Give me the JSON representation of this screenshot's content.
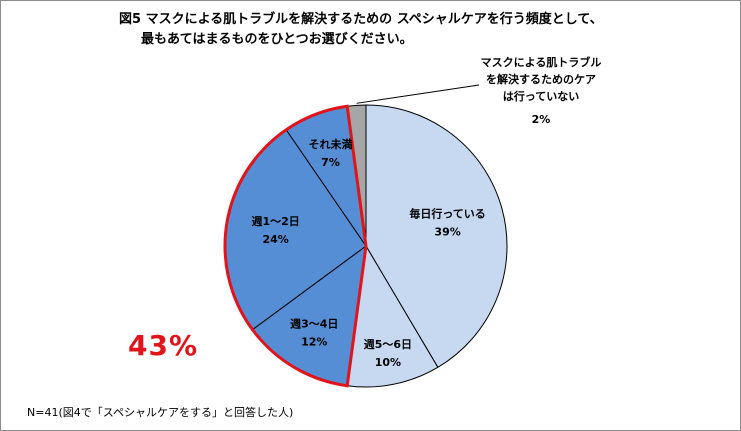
{
  "chart_data": {
    "type": "pie",
    "title_line1": "図5 マスクによる肌トラブルを解決するための スペシャルケアを行う頻度として、",
    "title_line2": "最もあてはまるものをひとつお選びください。",
    "slices": [
      {
        "label": "毎日行っている",
        "value": 39,
        "display": "39%",
        "color": "#c6d9f1",
        "highlight": false
      },
      {
        "label": "週5～6日",
        "value": 10,
        "display": "10%",
        "color": "#c6d9f1",
        "highlight": false
      },
      {
        "label": "週3～4日",
        "value": 12,
        "display": "12%",
        "color": "#558ed5",
        "highlight": true
      },
      {
        "label": "週1～2日",
        "value": 24,
        "display": "24%",
        "color": "#558ed5",
        "highlight": true
      },
      {
        "label": "それ未満",
        "value": 7,
        "display": "7%",
        "color": "#558ed5",
        "highlight": true
      },
      {
        "label_lines": [
          "マスクによる肌トラブル",
          "を解決するためのケア",
          "は行っていない"
        ],
        "value": 2,
        "display": "2%",
        "color": "#a6a6a6",
        "highlight": false
      }
    ],
    "highlight_total": "43%",
    "highlight_color": "#e0141a"
  },
  "footnote": "N=41(図4で「スペシャルケアをする」と回答した人)"
}
